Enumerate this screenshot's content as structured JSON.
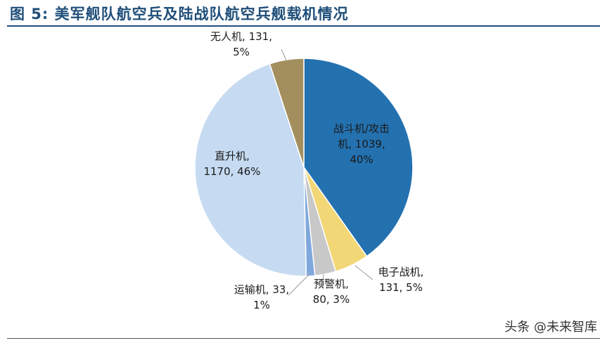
{
  "figure": {
    "title": "图 5: 美军舰队航空兵及陆战队航空兵舰载机情况"
  },
  "chart_data": {
    "type": "pie",
    "title": "图 5: 美军舰队航空兵及陆战队航空兵舰载机情况",
    "slices": [
      {
        "label": "战斗机/攻击机",
        "value": 1039,
        "percent": "40%",
        "color": "#2471b0",
        "label_lines": [
          "战斗机/攻击",
          "机, 1039,",
          "40%"
        ]
      },
      {
        "label": "电子战机",
        "value": 131,
        "percent": "5%",
        "color": "#f2d777",
        "label_lines": [
          "电子战机,",
          "131, 5%"
        ]
      },
      {
        "label": "预警机",
        "value": 80,
        "percent": "3%",
        "color": "#c8c8c8",
        "label_lines": [
          "预警机,",
          "80, 3%"
        ]
      },
      {
        "label": "运输机",
        "value": 33,
        "percent": "1%",
        "color": "#7fa8dc",
        "label_lines": [
          "运输机, 33,",
          "1%"
        ]
      },
      {
        "label": "直升机",
        "value": 1170,
        "percent": "46%",
        "color": "#c6dbf1",
        "label_lines": [
          "直升机,",
          "1170, 46%"
        ]
      },
      {
        "label": "无人机",
        "value": 131,
        "percent": "5%",
        "color": "#a38f5e",
        "label_lines": [
          "无人机, 131,",
          "5%"
        ]
      }
    ]
  },
  "watermark": "头条 @未来智库"
}
